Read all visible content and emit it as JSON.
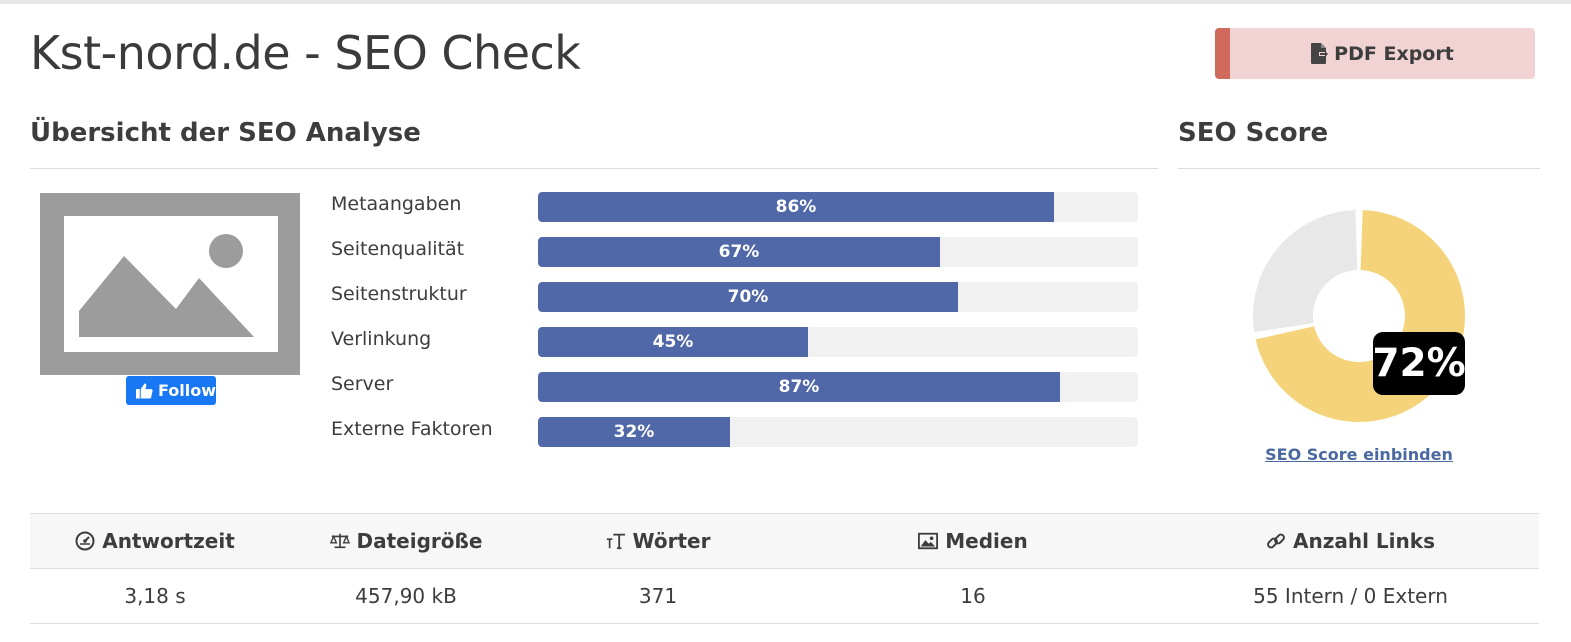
{
  "page": {
    "title": "Kst-nord.de - SEO Check"
  },
  "toolbar": {
    "pdf_label": "PDF Export",
    "pdf_icon": "file-export-icon"
  },
  "overview": {
    "title": "Übersicht der SEO Analyse",
    "follow_label": "Follow",
    "metrics": [
      {
        "label": "Metaangaben",
        "value": 86,
        "value_text": "86%"
      },
      {
        "label": "Seitenqualität",
        "value": 67,
        "value_text": "67%"
      },
      {
        "label": "Seitenstruktur",
        "value": 70,
        "value_text": "70%"
      },
      {
        "label": "Verlinkung",
        "value": 45,
        "value_text": "45%"
      },
      {
        "label": "Server",
        "value": 87,
        "value_text": "87%"
      },
      {
        "label": "Externe Faktoren",
        "value": 32,
        "value_text": "32%"
      }
    ]
  },
  "score": {
    "title": "SEO Score",
    "value": 72,
    "value_text": "72%",
    "link_label": "SEO Score einbinden",
    "fill_color": "#f5d37a",
    "rest_color": "#e8e8e8"
  },
  "stats": {
    "headers": [
      {
        "label": "Antwortzeit",
        "icon": "gauge-icon"
      },
      {
        "label": "Dateigröße",
        "icon": "scale-icon"
      },
      {
        "label": "Wörter",
        "icon": "text-height-icon"
      },
      {
        "label": "Medien",
        "icon": "image-icon"
      },
      {
        "label": "Anzahl Links",
        "icon": "link-icon"
      }
    ],
    "values": [
      "3,18 s",
      "457,90 kB",
      "371",
      "16",
      "55 Intern / 0 Extern"
    ]
  },
  "colors": {
    "bar": "#5068a8",
    "bar_track": "#f1f1f1",
    "pdf_bg": "#f2d3d3",
    "pdf_accent": "#cf6a5d",
    "link": "#4a69a0"
  }
}
